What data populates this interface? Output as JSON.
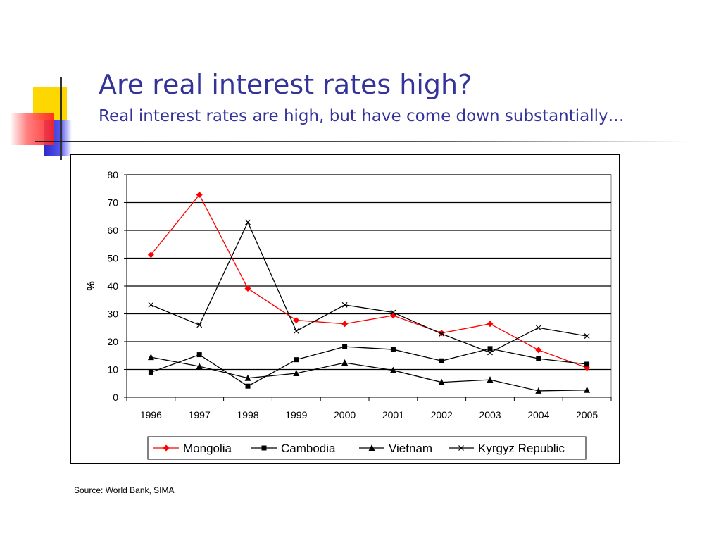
{
  "slide": {
    "title": "Are real interest rates high?",
    "subtitle": "Real interest rates are high, but have come down substantially…",
    "source": "Source: World Bank, SIMA",
    "colors": {
      "title": "#333399",
      "deco_yellow": "#FFD700",
      "deco_blue": "#3333CC",
      "deco_red": "#FF3333",
      "mongolia": "#FF0000",
      "others": "#000000"
    }
  },
  "chart_data": {
    "type": "line",
    "title": "",
    "xlabel": "",
    "ylabel": "%",
    "ylim": [
      0,
      80
    ],
    "yticks": [
      0,
      10,
      20,
      30,
      40,
      50,
      60,
      70,
      80
    ],
    "grid": "horizontal",
    "legend_position": "bottom",
    "categories": [
      "1996",
      "1997",
      "1998",
      "1999",
      "2000",
      "2001",
      "2002",
      "2003",
      "2004",
      "2005"
    ],
    "series": [
      {
        "name": "Mongolia",
        "marker": "diamond",
        "color": "#FF0000",
        "values": [
          51.2,
          72.8,
          39.1,
          27.7,
          26.4,
          29.4,
          23.1,
          26.4,
          17.0,
          10.6
        ]
      },
      {
        "name": "Cambodia",
        "marker": "square",
        "color": "#000000",
        "values": [
          9.0,
          15.3,
          4.0,
          13.5,
          18.2,
          17.2,
          13.1,
          17.5,
          13.9,
          11.9
        ]
      },
      {
        "name": "Vietnam",
        "marker": "triangle",
        "color": "#000000",
        "values": [
          14.4,
          11.1,
          6.9,
          8.6,
          12.4,
          9.7,
          5.4,
          6.3,
          2.3,
          2.6
        ]
      },
      {
        "name": "Kyrgyz Republic",
        "marker": "x",
        "color": "#000000",
        "values": [
          33.2,
          26.0,
          62.9,
          23.8,
          33.2,
          30.5,
          22.8,
          16.1,
          25.0,
          22.0
        ]
      }
    ]
  }
}
